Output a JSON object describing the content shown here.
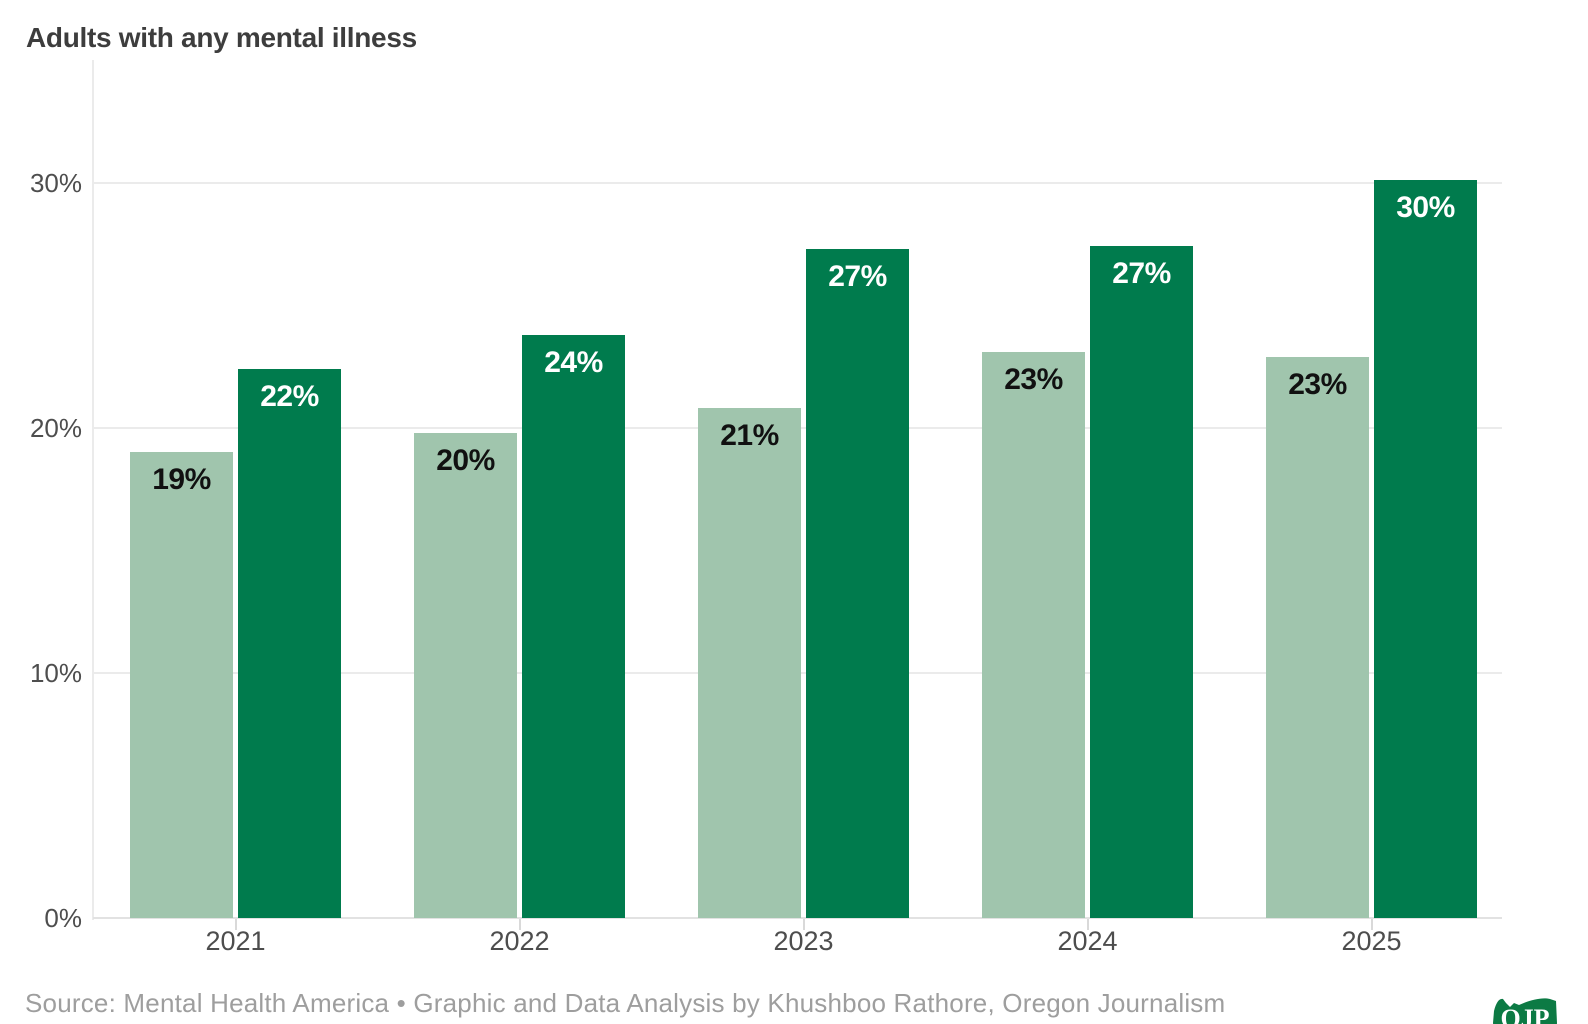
{
  "title": "Adults with any mental illness",
  "chart_data": {
    "type": "bar",
    "title": "Adults with any mental illness",
    "categories": [
      "2021",
      "2022",
      "2023",
      "2024",
      "2025"
    ],
    "series": [
      {
        "name": "lighter-green-series",
        "color": "#A0C5AD",
        "label_color": "#111111",
        "values": [
          19.0,
          19.8,
          20.8,
          23.1,
          22.9
        ],
        "display_labels": [
          "19%",
          "20%",
          "21%",
          "23%",
          "23%"
        ]
      },
      {
        "name": "darker-green-series",
        "color": "#007B4D",
        "label_color": "#FFFFFF",
        "values": [
          22.4,
          23.8,
          27.3,
          27.4,
          30.1
        ],
        "display_labels": [
          "22%",
          "24%",
          "27%",
          "27%",
          "30%"
        ]
      }
    ],
    "ylim": [
      0,
      35
    ],
    "yticks": [
      {
        "value": 0,
        "label": "0%"
      },
      {
        "value": 10,
        "label": "10%"
      },
      {
        "value": 20,
        "label": "20%"
      },
      {
        "value": 30,
        "label": "30%"
      }
    ],
    "grid": true,
    "legend": "none",
    "colors": {
      "grid": "#EBEBEB",
      "baseline": "#E2E2E2",
      "axis_text": "#4E4E4E",
      "title_text": "#3D3D3D",
      "source_text": "#9E9E9E",
      "logo_green": "#0C7A44"
    }
  },
  "footer": {
    "source": "Source: Mental Health America • Graphic and Data Analysis by Khushboo Rathore, Oregon Journalism",
    "logo_text": "OJP"
  }
}
